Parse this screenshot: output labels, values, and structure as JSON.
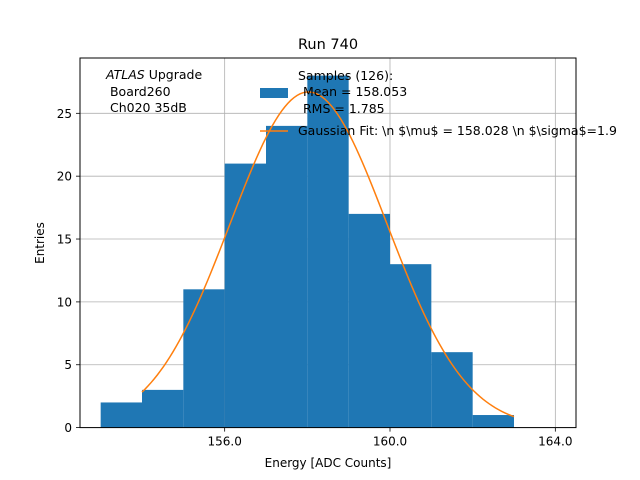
{
  "chart_data": {
    "type": "bar",
    "title": "Run 740",
    "xlabel": "Energy [ADC Counts]",
    "ylabel": "Entries",
    "xlim": [
      152.5,
      164.5
    ],
    "ylim": [
      0,
      29.4
    ],
    "x_ticks": [
      156.0,
      160.0,
      164.0
    ],
    "x_tick_labels": [
      "156.0",
      "160.0",
      "164.0"
    ],
    "y_ticks": [
      0,
      5,
      10,
      15,
      20,
      25
    ],
    "y_tick_labels": [
      "0",
      "5",
      "10",
      "15",
      "20",
      "25"
    ],
    "grid": true,
    "bin_edges": [
      153,
      154,
      155,
      156,
      157,
      158,
      159,
      160,
      161,
      162,
      163
    ],
    "counts": [
      2,
      3,
      11,
      21,
      24,
      28,
      17,
      13,
      6,
      1
    ],
    "hist_color": "#1f77b4",
    "fit": {
      "mu": 158.028,
      "sigma": 1.9,
      "amplitude": 26.7,
      "x_range": [
        154,
        163
      ],
      "color": "#ff7f0e"
    },
    "annotation": {
      "italic": "ATLAS",
      "rest": " Upgrade",
      "line2": " Board260",
      "line3": " Ch020 35dB"
    },
    "legend": {
      "placement": "top-center",
      "hist_line1": "Samples (126):",
      "hist_line2": "Mean = 158.053",
      "hist_line3": "RMS = 1.785",
      "fit_label": "Gaussian Fit: \\n $\\mu$ = 158.028 \\n $\\sigma$=1.9"
    }
  }
}
